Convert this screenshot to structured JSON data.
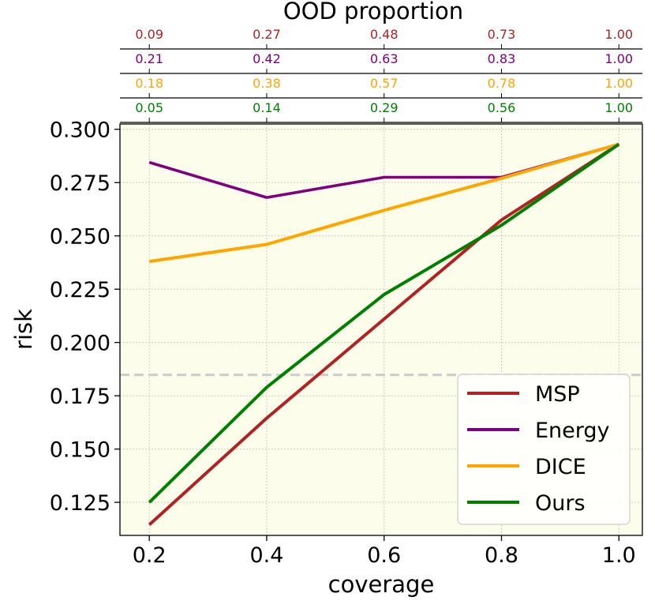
{
  "chart_data": {
    "type": "line",
    "title": "OOD proportion",
    "xlabel": "coverage",
    "ylabel": "risk",
    "x": [
      0.2,
      0.4,
      0.6,
      0.8,
      1.0
    ],
    "x_tick_labels": [
      "0.2",
      "0.4",
      "0.6",
      "0.8",
      "1.0"
    ],
    "xlim": [
      0.15,
      1.04
    ],
    "ylim": [
      0.1095,
      0.3025
    ],
    "y_ticks": [
      0.125,
      0.15,
      0.175,
      0.2,
      0.225,
      0.25,
      0.275,
      0.3
    ],
    "y_tick_labels": [
      "0.125",
      "0.150",
      "0.175",
      "0.200",
      "0.225",
      "0.250",
      "0.275",
      "0.300"
    ],
    "grid": true,
    "background": "#fdfdeb",
    "reference_line": {
      "y": 0.1848,
      "style": "dashed",
      "color": "#cccccc"
    },
    "series": [
      {
        "name": "MSP",
        "color": "#b22222",
        "values": [
          0.1145,
          0.1645,
          0.211,
          0.2575,
          0.293
        ]
      },
      {
        "name": "Energy",
        "color": "#800080",
        "values": [
          0.2845,
          0.268,
          0.2775,
          0.2775,
          0.293
        ]
      },
      {
        "name": "DICE",
        "color": "#ffa500",
        "values": [
          0.238,
          0.246,
          0.262,
          0.277,
          0.293
        ]
      },
      {
        "name": "Ours",
        "color": "#008000",
        "values": [
          0.125,
          0.179,
          0.2225,
          0.255,
          0.293
        ]
      }
    ],
    "ood_proportion_rows": [
      {
        "series": "MSP",
        "color": "#b22222",
        "labels": [
          "0.09",
          "0.27",
          "0.48",
          "0.73",
          "1.00"
        ]
      },
      {
        "series": "Energy",
        "color": "#800080",
        "labels": [
          "0.21",
          "0.42",
          "0.63",
          "0.83",
          "1.00"
        ]
      },
      {
        "series": "DICE",
        "color": "#ffa500",
        "labels": [
          "0.18",
          "0.38",
          "0.57",
          "0.78",
          "1.00"
        ]
      },
      {
        "series": "Ours",
        "color": "#008000",
        "labels": [
          "0.05",
          "0.14",
          "0.29",
          "0.56",
          "1.00"
        ]
      }
    ],
    "legend": {
      "position": "lower-right",
      "entries": [
        "MSP",
        "Energy",
        "DICE",
        "Ours"
      ]
    }
  }
}
